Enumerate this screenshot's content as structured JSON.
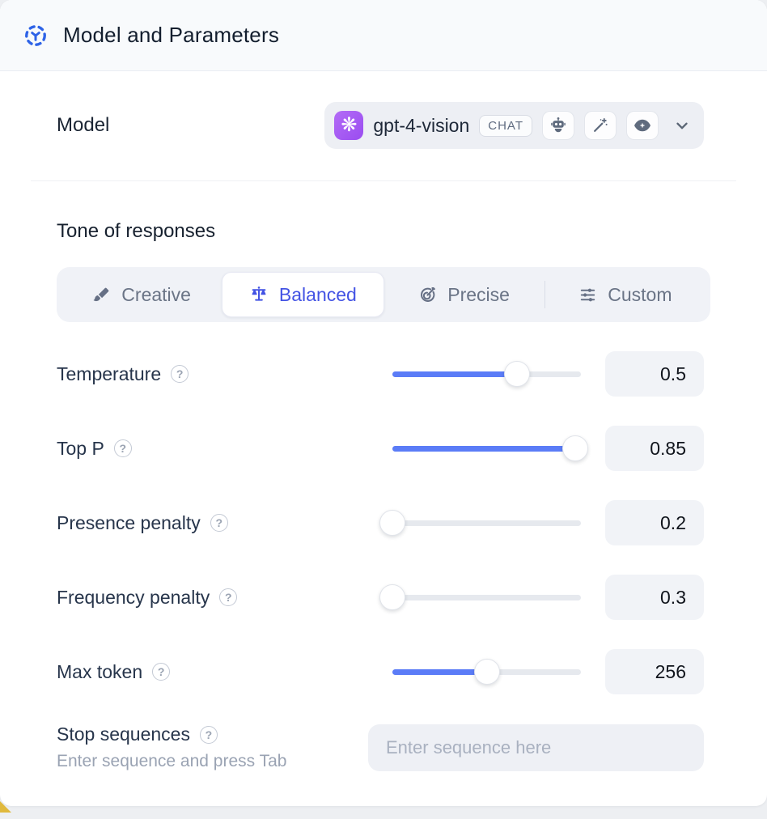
{
  "header": {
    "title": "Model and Parameters",
    "icon": "model-hub-icon",
    "icon_color": "#2e63e7"
  },
  "model": {
    "label": "Model",
    "selected_model": "gpt-4-vision",
    "type_badge": "CHAT",
    "provider_icon": "openai-logo",
    "provider_glyph": "❋",
    "provider_color": "#a259f7",
    "capability_icons": [
      "robot-icon",
      "magic-wand-icon",
      "vision-eye-icon"
    ],
    "dropdown_icon": "chevron-down-icon"
  },
  "tone": {
    "heading": "Tone of responses",
    "options": [
      {
        "label": "Creative",
        "icon": "paintbrush-icon",
        "selected": false
      },
      {
        "label": "Balanced",
        "icon": "balance-scale-icon",
        "selected": true
      },
      {
        "label": "Precise",
        "icon": "target-icon",
        "selected": false
      },
      {
        "label": "Custom",
        "icon": "sliders-icon",
        "selected": false
      }
    ]
  },
  "parameters": [
    {
      "label": "Temperature",
      "value": "0.5",
      "fill_pct": 66
    },
    {
      "label": "Top P",
      "value": "0.85",
      "fill_pct": 97
    },
    {
      "label": "Presence penalty",
      "value": "0.2",
      "fill_pct": 0
    },
    {
      "label": "Frequency penalty",
      "value": "0.3",
      "fill_pct": 0
    },
    {
      "label": "Max token",
      "value": "256",
      "fill_pct": 50
    }
  ],
  "help_icon_glyph": "?",
  "stop_sequences": {
    "label": "Stop sequences",
    "hint": "Enter sequence and press Tab",
    "placeholder": "Enter sequence here"
  },
  "colors": {
    "accent_blue": "#4353e4",
    "slider_blue": "#5b7cf7",
    "header_bg": "#f8fafc",
    "control_bg": "#eef0f5",
    "value_box_bg": "#f1f3f7"
  }
}
